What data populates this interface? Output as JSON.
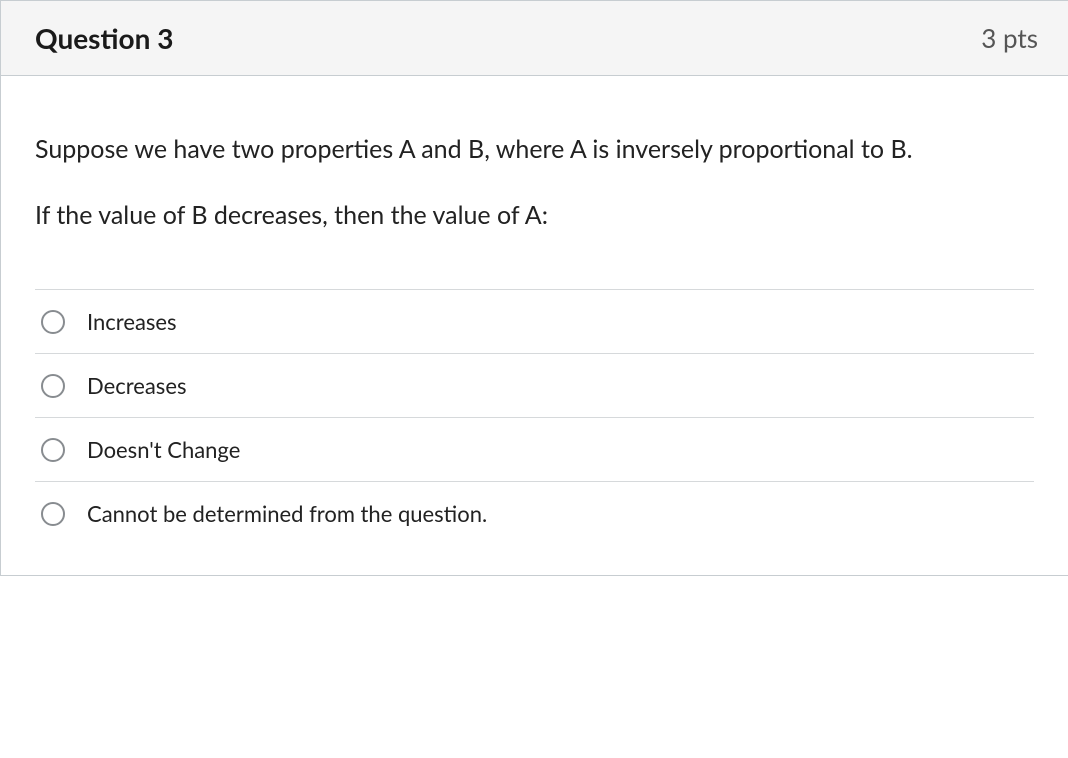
{
  "question": {
    "title": "Question 3",
    "points": "3 pts",
    "prompt_line1": "Suppose we have two properties A and B, where A is inversely proportional to B.",
    "prompt_line2": "If the value of B decreases, then the value of A:",
    "answers": [
      {
        "label": "Increases",
        "selected": false
      },
      {
        "label": "Decreases",
        "selected": false
      },
      {
        "label": "Doesn't Change",
        "selected": false
      },
      {
        "label": "Cannot be determined from the question.",
        "selected": false
      }
    ]
  },
  "style": {
    "header_bg": "#f5f5f5",
    "border_color": "#c7cdd1",
    "divider_color": "#d6d9db",
    "title_color": "#1a1a1a",
    "points_color": "#555555",
    "body_text_color": "#222222",
    "radio_border": "#888c90",
    "title_fontsize": 28,
    "points_fontsize": 26,
    "prompt_fontsize": 25,
    "answer_fontsize": 22
  }
}
